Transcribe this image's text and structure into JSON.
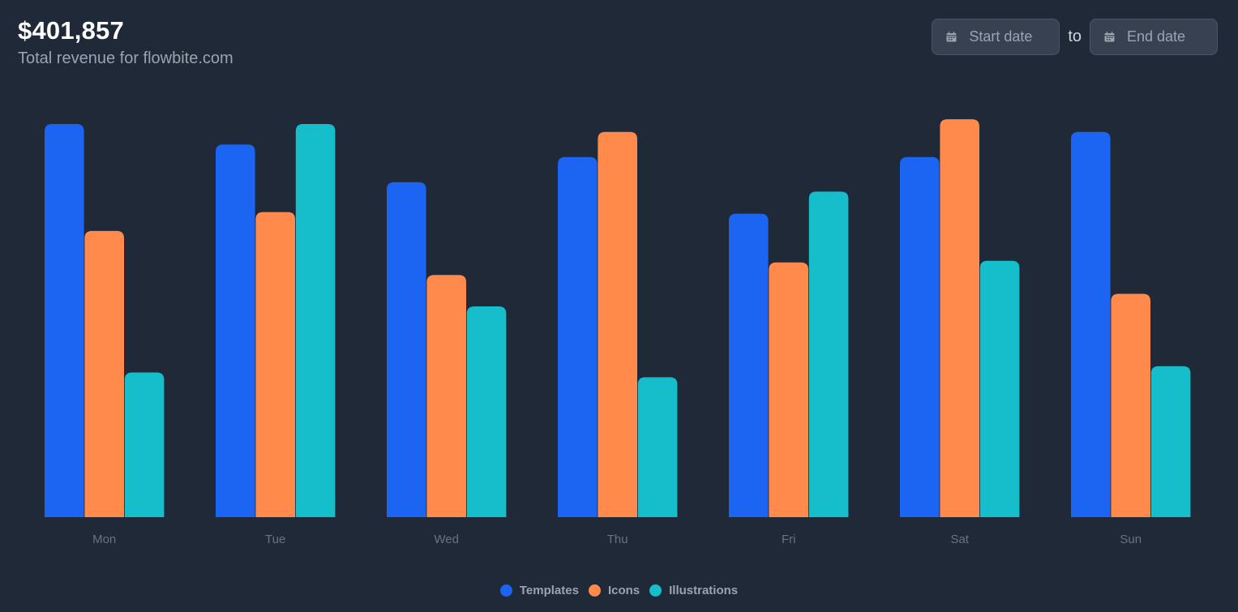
{
  "header": {
    "revenue": "$401,857",
    "subtitle": "Total revenue for flowbite.com"
  },
  "date_range": {
    "start_placeholder": "Start date",
    "separator": "to",
    "end_placeholder": "End date",
    "icon": "calendar-icon"
  },
  "chart_data": {
    "type": "bar",
    "title": "",
    "xlabel": "",
    "ylabel": "",
    "categories": [
      "Mon",
      "Tue",
      "Wed",
      "Thu",
      "Fri",
      "Sat",
      "Sun"
    ],
    "ylim": [
      0,
      250
    ],
    "grid": false,
    "legend_position": "bottom-center",
    "series": [
      {
        "name": "Templates",
        "color": "#1c64f2",
        "values": [
          250,
          237,
          213,
          229,
          193,
          229,
          245
        ]
      },
      {
        "name": "Icons",
        "color": "#ff8a4c",
        "values": [
          182,
          194,
          154,
          245,
          162,
          253,
          142
        ]
      },
      {
        "name": "Illustrations",
        "color": "#16bdca",
        "values": [
          92,
          250,
          134,
          89,
          207,
          163,
          96
        ]
      }
    ]
  }
}
